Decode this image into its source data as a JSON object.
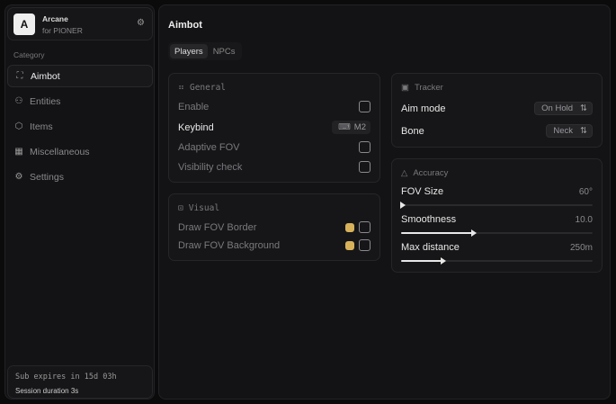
{
  "app": {
    "logo_letter": "A",
    "name": "Arcane",
    "subtitle": "for PIONER"
  },
  "sidebar": {
    "category_label": "Category",
    "items": [
      {
        "label": "Aimbot",
        "icon": "crosshair-icon",
        "active": true
      },
      {
        "label": "Entities",
        "icon": "users-icon"
      },
      {
        "label": "Items",
        "icon": "box-icon"
      },
      {
        "label": "Miscellaneous",
        "icon": "grid-icon"
      },
      {
        "label": "Settings",
        "icon": "gear-icon"
      }
    ]
  },
  "footer": {
    "sub": "Sub expires in 15d 03h",
    "session": "Session duration 3s"
  },
  "main": {
    "title": "Aimbot",
    "tabs": [
      {
        "label": "Players",
        "active": true
      },
      {
        "label": "NPCs"
      }
    ]
  },
  "general": {
    "title": "General",
    "enable": "Enable",
    "keybind": "Keybind",
    "keybind_value": "M2",
    "adaptive": "Adaptive FOV",
    "visibility": "Visibility check"
  },
  "visual": {
    "title": "Visual",
    "border": "Draw FOV Border",
    "background": "Draw FOV Background",
    "color": "#d8b25a"
  },
  "tracker": {
    "title": "Tracker",
    "aim_mode": "Aim mode",
    "aim_mode_value": "On Hold",
    "bone": "Bone",
    "bone_value": "Neck"
  },
  "accuracy": {
    "title": "Accuracy",
    "sliders": [
      {
        "label": "FOV Size",
        "value": "60°",
        "fill_pct": 0
      },
      {
        "label": "Smoothness",
        "value": "10.0",
        "fill_pct": 37
      },
      {
        "label": "Max distance",
        "value": "250m",
        "fill_pct": 21
      }
    ]
  }
}
